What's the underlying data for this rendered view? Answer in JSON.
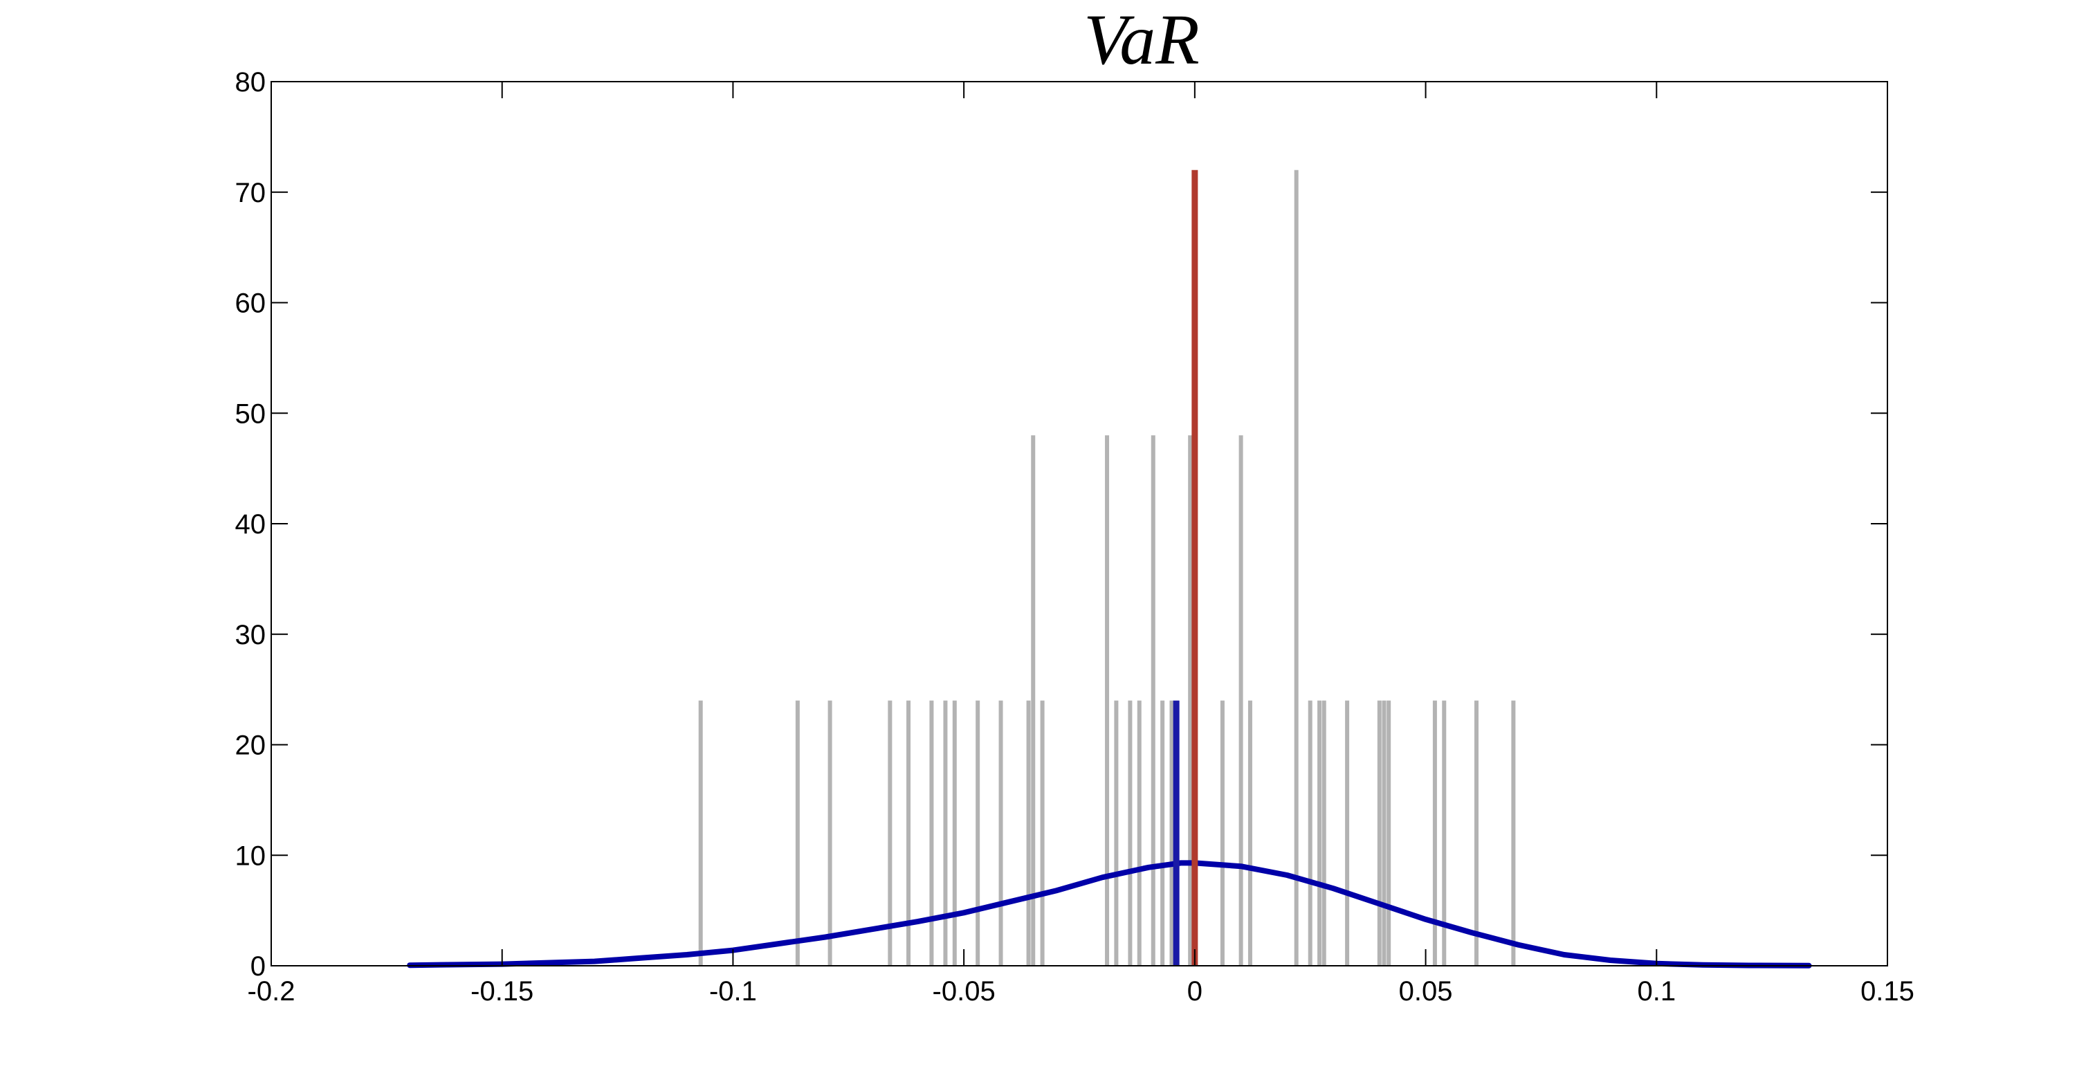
{
  "chart_data": {
    "type": "bar",
    "title": "VaR",
    "xlabel": "",
    "ylabel": "",
    "xlim": [
      -0.2,
      0.15
    ],
    "ylim": [
      0,
      80
    ],
    "xticks": [
      -0.2,
      -0.15,
      -0.1,
      -0.05,
      0,
      0.05,
      0.1,
      0.15
    ],
    "xtick_labels": [
      "-0.2",
      "-0.15",
      "-0.1",
      "-0.05",
      "0",
      "0.05",
      "0.1",
      "0.15"
    ],
    "yticks": [
      0,
      10,
      20,
      30,
      40,
      50,
      60,
      70,
      80
    ],
    "ytick_labels": [
      "0",
      "10",
      "20",
      "30",
      "40",
      "50",
      "60",
      "70",
      "80"
    ],
    "grid": false,
    "series": [
      {
        "type": "bar",
        "color": "#b3b3b3",
        "x": [
          -0.107,
          -0.086,
          -0.079,
          -0.066,
          -0.062,
          -0.057,
          -0.054,
          -0.052,
          -0.047,
          -0.042,
          -0.036,
          -0.035,
          -0.033,
          -0.019,
          -0.017,
          -0.014,
          -0.012,
          -0.009,
          -0.007,
          -0.005,
          -0.001,
          0.006,
          0.01,
          0.012,
          0.022,
          0.025,
          0.027,
          0.028,
          0.033,
          0.04,
          0.041,
          0.042,
          0.052,
          0.054,
          0.061,
          0.069
        ],
        "values": [
          24,
          24,
          24,
          24,
          24,
          24,
          24,
          24,
          24,
          24,
          24,
          48,
          24,
          48,
          24,
          24,
          24,
          48,
          24,
          24,
          48,
          24,
          48,
          24,
          72,
          24,
          24,
          24,
          24,
          24,
          24,
          24,
          24,
          24,
          24,
          24
        ]
      },
      {
        "type": "line",
        "color": "#0000a8",
        "x": [
          -0.17,
          -0.15,
          -0.13,
          -0.12,
          -0.11,
          -0.1,
          -0.09,
          -0.08,
          -0.07,
          -0.06,
          -0.05,
          -0.04,
          -0.03,
          -0.02,
          -0.01,
          -0.003,
          0.0,
          0.01,
          0.02,
          0.03,
          0.04,
          0.05,
          0.06,
          0.07,
          0.08,
          0.09,
          0.1,
          0.11,
          0.12,
          0.133
        ],
        "values": [
          0.05,
          0.15,
          0.4,
          0.7,
          1.0,
          1.4,
          2.0,
          2.6,
          3.3,
          4.0,
          4.8,
          5.8,
          6.8,
          8.0,
          8.9,
          9.3,
          9.3,
          9.0,
          8.2,
          7.0,
          5.6,
          4.2,
          3.0,
          1.9,
          1.0,
          0.5,
          0.2,
          0.08,
          0.03,
          0.01
        ]
      },
      {
        "type": "vline",
        "color": "#1a1aa6",
        "x": -0.004,
        "y": [
          0,
          24
        ]
      },
      {
        "type": "vline",
        "color": "#b03a2e",
        "x": 0.0,
        "y": [
          0,
          72
        ]
      }
    ]
  }
}
